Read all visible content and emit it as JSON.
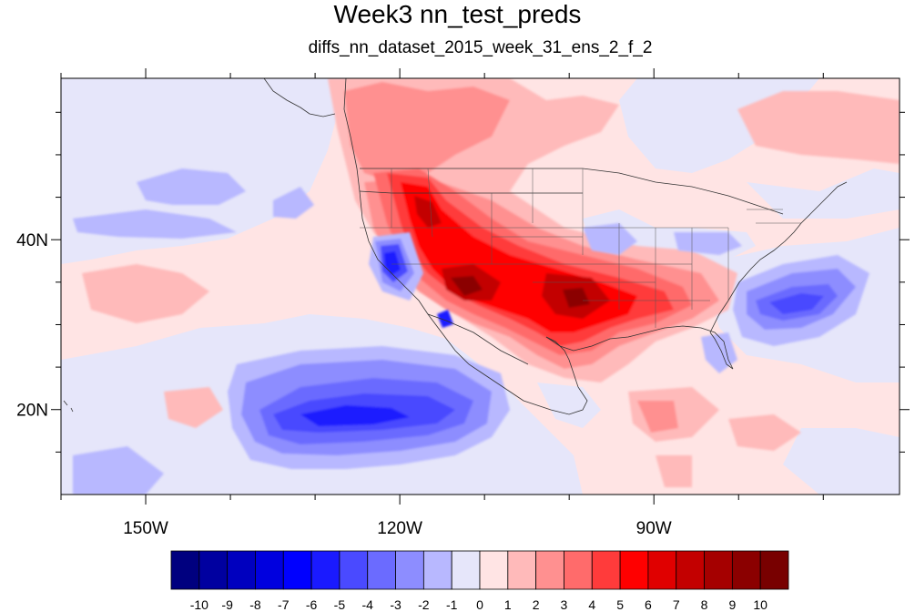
{
  "title": "Week3 nn_test_preds",
  "subtitle": "diffs_nn_dataset_2015_week_31_ens_2_f_2",
  "map": {
    "lon_range": [
      -160,
      -61
    ],
    "lat_range": [
      10,
      59
    ],
    "lon_ticks": [
      {
        "value": -150,
        "label": "150W"
      },
      {
        "value": -120,
        "label": "120W"
      },
      {
        "value": -90,
        "label": "90W"
      }
    ],
    "lat_ticks": [
      {
        "value": 40,
        "label": "40N"
      },
      {
        "value": 20,
        "label": "20N"
      }
    ]
  },
  "colorbar": {
    "levels": [
      "-10",
      "-9",
      "-8",
      "-7",
      "-6",
      "-5",
      "-4",
      "-3",
      "-2",
      "-1",
      "0",
      "1",
      "2",
      "3",
      "4",
      "5",
      "6",
      "7",
      "8",
      "9",
      "10"
    ],
    "colors": [
      "#00007f",
      "#0000a0",
      "#0000bf",
      "#0000df",
      "#0000ff",
      "#1a1aff",
      "#4a4aff",
      "#6b6bff",
      "#8d8dff",
      "#b8b8ff",
      "#e6e6fa",
      "#ffe4e4",
      "#ffbaba",
      "#ff9090",
      "#ff6b6b",
      "#ff3b3b",
      "#ff0000",
      "#e00000",
      "#c30000",
      "#a50000",
      "#8b0000",
      "#780000"
    ]
  }
}
